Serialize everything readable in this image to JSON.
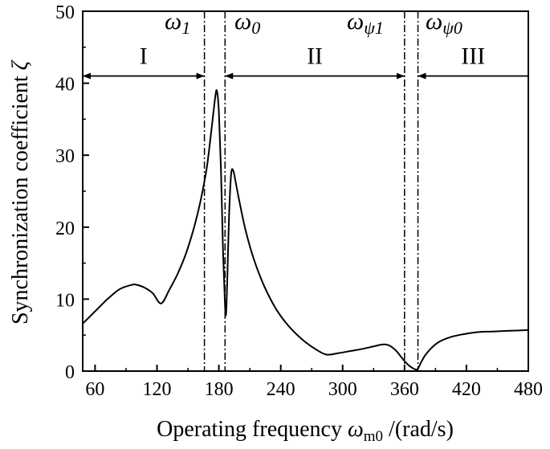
{
  "chart_data": {
    "type": "line",
    "xlabel": "Operating frequency",
    "xlabel_symbol": "ω",
    "xlabel_subscript": "m0",
    "xlabel_unit": " /(rad/s)",
    "ylabel": "Synchronization coefficient",
    "ylabel_symbol": "ζ",
    "xlim": [
      48,
      480
    ],
    "ylim": [
      0,
      50
    ],
    "xticks": [
      60,
      120,
      180,
      240,
      300,
      360,
      420,
      480
    ],
    "yticks": [
      0,
      10,
      20,
      30,
      40,
      50
    ],
    "grid": false,
    "series": [
      {
        "x": [
          48,
          60,
          72,
          84,
          96,
          100,
          108,
          116,
          124,
          132,
          140,
          148,
          156,
          162,
          168,
          172,
          176,
          178,
          180,
          182,
          184,
          186,
          187,
          188,
          190,
          192,
          194,
          196,
          200,
          206,
          214,
          224,
          236,
          248,
          260,
          272,
          284,
          296,
          308,
          320,
          332,
          340,
          346,
          352,
          356,
          360,
          364,
          368,
          372,
          374,
          376,
          380,
          386,
          394,
          404,
          416,
          430,
          446,
          462,
          480
        ],
        "y": [
          6.6,
          8.3,
          10.0,
          11.4,
          12.0,
          12.0,
          11.6,
          10.8,
          9.4,
          11.3,
          13.5,
          16.3,
          20.0,
          23.5,
          28.0,
          32.5,
          37.5,
          39.0,
          36.0,
          28.0,
          17.0,
          9.0,
          8.0,
          12.0,
          22.0,
          27.5,
          27.8,
          26.5,
          23.5,
          19.5,
          15.5,
          11.8,
          8.5,
          6.2,
          4.5,
          3.2,
          2.3,
          2.5,
          2.8,
          3.1,
          3.5,
          3.7,
          3.5,
          2.8,
          2.1,
          1.4,
          0.8,
          0.4,
          0.2,
          0.6,
          1.2,
          2.2,
          3.2,
          4.1,
          4.7,
          5.1,
          5.4,
          5.5,
          5.6,
          5.7
        ]
      }
    ],
    "vlines": [
      {
        "name": "ω1",
        "symbol": "ω",
        "sub": "1",
        "x": 166
      },
      {
        "name": "ω0",
        "symbol": "ω",
        "sub": "0",
        "x": 186
      },
      {
        "name": "ωψ1",
        "symbol": "ω",
        "sub": "ψ1",
        "x": 360
      },
      {
        "name": "ωψ0",
        "symbol": "ω",
        "sub": "ψ0",
        "x": 373
      }
    ],
    "regions": [
      {
        "label": "I",
        "from": 48,
        "to": 166
      },
      {
        "label": "II",
        "from": 186,
        "to": 360
      },
      {
        "label": "III",
        "from": 373,
        "to": 480
      }
    ],
    "region_arrow_y": 41
  }
}
